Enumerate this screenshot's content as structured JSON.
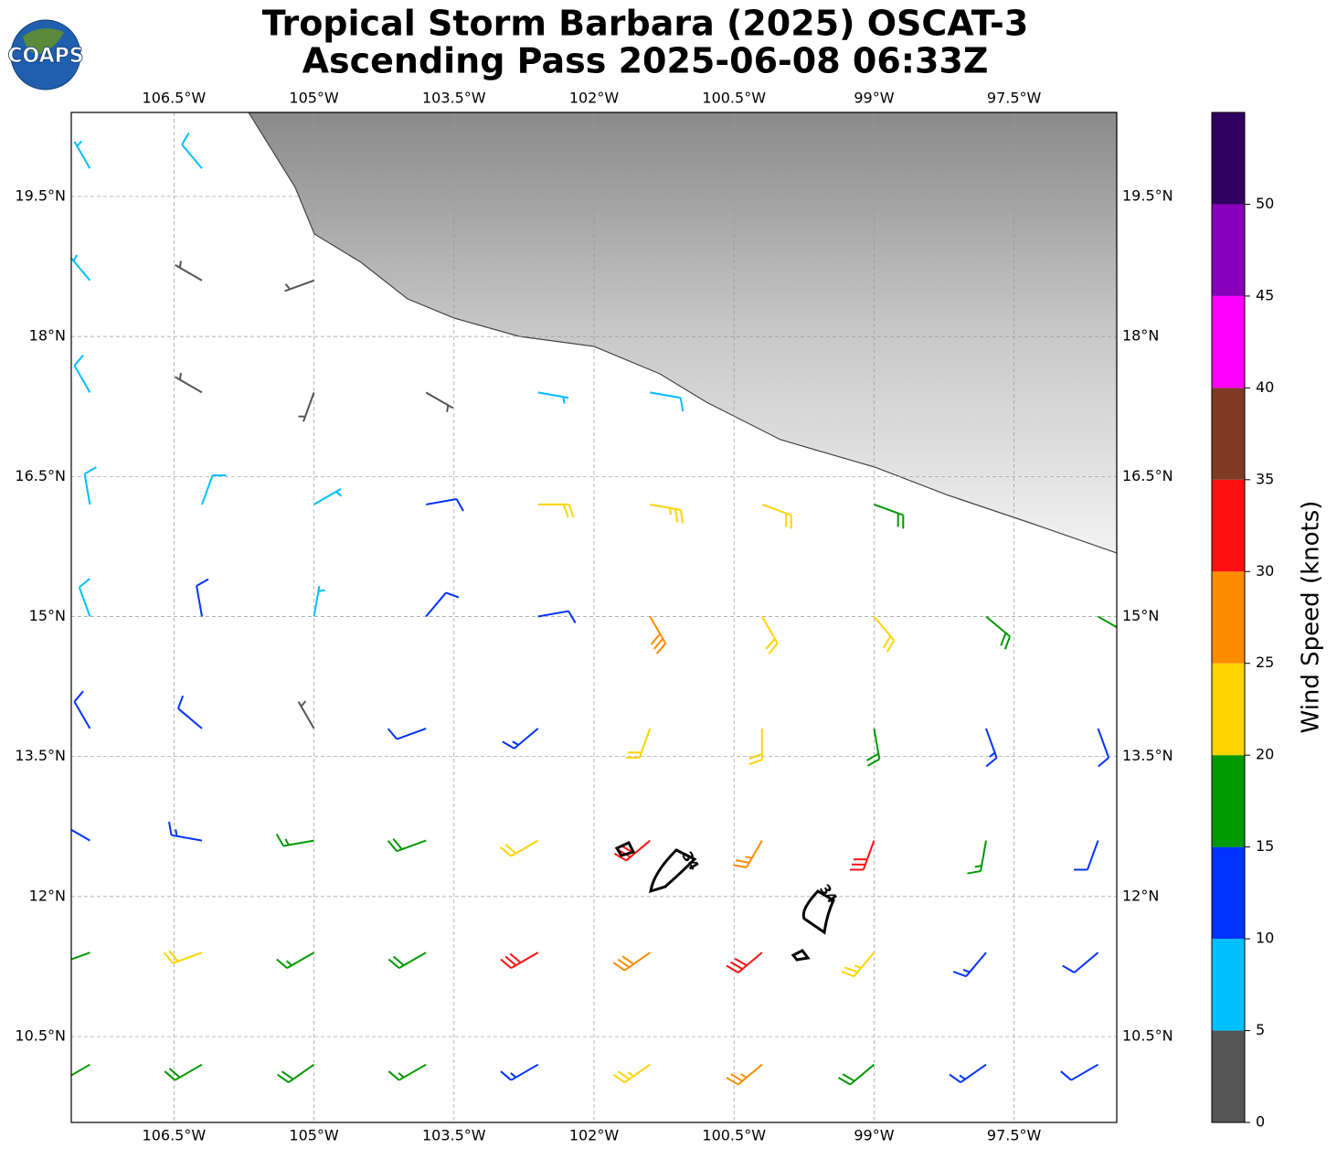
{
  "header": {
    "title_line1": "Tropical Storm Barbara (2025) OSCAT-3",
    "title_line2": "Ascending Pass 2025-06-08 06:33Z",
    "logo": "COAPS"
  },
  "map": {
    "lonlim": [
      -107.6,
      -96.4
    ],
    "latlim": [
      9.58,
      20.4
    ],
    "grid": true,
    "lon_ticks": [
      {
        "value": -106.5,
        "label": "106.5°W"
      },
      {
        "value": -105,
        "label": "105°W"
      },
      {
        "value": -103.5,
        "label": "103.5°W"
      },
      {
        "value": -102,
        "label": "102°W"
      },
      {
        "value": -100.5,
        "label": "100.5°W"
      },
      {
        "value": -99,
        "label": "99°W"
      },
      {
        "value": -97.5,
        "label": "97.5°W"
      }
    ],
    "lat_ticks": [
      {
        "value": 19.5,
        "label": "19.5°N"
      },
      {
        "value": 18,
        "label": "18°N"
      },
      {
        "value": 16.5,
        "label": "16.5°N"
      },
      {
        "value": 15,
        "label": "15°N"
      },
      {
        "value": 13.5,
        "label": "13.5°N"
      },
      {
        "value": 12,
        "label": "12°N"
      },
      {
        "value": 10.5,
        "label": "10.5°N"
      }
    ],
    "contour_label": "34",
    "wind": {
      "lons": [
        -107.4,
        -106.2,
        -105,
        -103.8,
        -102.6,
        -101.4,
        -100.2,
        -99,
        -97.8,
        -96.6
      ],
      "lats": [
        19.8,
        18.6,
        17.4,
        16.2,
        15,
        13.8,
        12.6,
        11.4,
        10.2
      ],
      "speed": [
        [
          7,
          8,
          null,
          null,
          null,
          null,
          null,
          null,
          null,
          null
        ],
        [
          6,
          3,
          3,
          null,
          null,
          null,
          null,
          null,
          null,
          null
        ],
        [
          8,
          3,
          3,
          4,
          7,
          8,
          null,
          null,
          null,
          null
        ],
        [
          9,
          8,
          7,
          12,
          22,
          24,
          22,
          18,
          null,
          null
        ],
        [
          9,
          12,
          7,
          10,
          10,
          28,
          22,
          22,
          18,
          16
        ],
        [
          12,
          12,
          4,
          12,
          14,
          22,
          22,
          18,
          14,
          12
        ],
        [
          14,
          14,
          16,
          18,
          22,
          32,
          26,
          30,
          16,
          12
        ],
        [
          18,
          20,
          16,
          18,
          30,
          28,
          30,
          24,
          14,
          10
        ],
        [
          18,
          18,
          18,
          16,
          13,
          24,
          26,
          18,
          14,
          12
        ]
      ],
      "direction": [
        [
          330,
          320,
          null,
          null,
          null,
          null,
          null,
          null,
          null,
          null
        ],
        [
          320,
          300,
          250,
          null,
          null,
          null,
          null,
          null,
          null,
          null
        ],
        [
          330,
          300,
          200,
          120,
          100,
          100,
          null,
          null,
          null,
          null
        ],
        [
          350,
          20,
          60,
          80,
          90,
          100,
          110,
          110,
          null,
          null
        ],
        [
          340,
          350,
          10,
          40,
          80,
          150,
          150,
          140,
          130,
          120
        ],
        [
          330,
          310,
          330,
          250,
          230,
          200,
          180,
          170,
          160,
          160
        ],
        [
          300,
          280,
          260,
          250,
          240,
          230,
          210,
          200,
          190,
          200
        ],
        [
          250,
          250,
          240,
          240,
          240,
          235,
          230,
          220,
          220,
          230
        ],
        [
          240,
          240,
          235,
          240,
          240,
          235,
          230,
          230,
          235,
          240
        ]
      ]
    }
  },
  "colorbar": {
    "label": "Wind Speed (knots)",
    "bounds": [
      0,
      5,
      10,
      15,
      20,
      25,
      30,
      35,
      40,
      45,
      50,
      55
    ],
    "ticks": [
      0,
      5,
      10,
      15,
      20,
      25,
      30,
      35,
      40,
      45,
      50
    ],
    "colors": [
      "#555555",
      "#00bfff",
      "#0033ff",
      "#009900",
      "#ffd400",
      "#ff8c00",
      "#ff1010",
      "#7f3a26",
      "#ff00ff",
      "#8800bb",
      "#300060"
    ]
  }
}
